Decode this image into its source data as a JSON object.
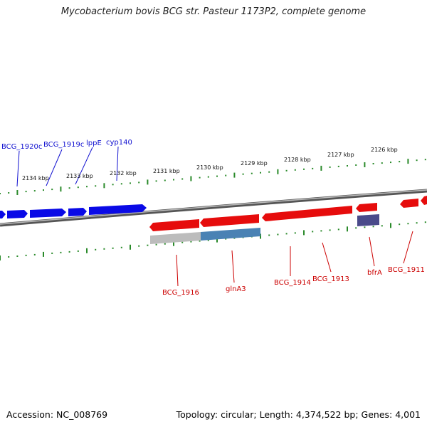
{
  "title": "Mycobacterium bovis BCG str. Pasteur 1173P2, complete genome",
  "footer": {
    "accession": "Accession: NC_008769",
    "summary": "Topology: circular; Length: 4,374,522 bp; Genes: 4,001"
  },
  "colors": {
    "forward_gene": "#0a0ae6",
    "reverse_gene": "#e60c0c",
    "rna_gene": "#4a4a8a",
    "feature_highlight": "#4a82b4",
    "feature_grey": "#bcbcbc",
    "backbone": "#777777",
    "ticks": "#2a8a2a"
  },
  "scale": {
    "tick_labels": [
      "2126 kbp",
      "2127 kbp",
      "2128 kbp",
      "2129 kbp",
      "2130 kbp",
      "2131 kbp",
      "2132 kbp",
      "2133 kbp",
      "2134 kbp"
    ]
  },
  "genes_forward": [
    {
      "label": "BCG_1920c"
    },
    {
      "label": "BCG_1919c"
    },
    {
      "label": "lppE"
    },
    {
      "label": "cyp140"
    }
  ],
  "genes_reverse": [
    {
      "label": "BCG_1916"
    },
    {
      "label": "glnA3"
    },
    {
      "label": "BCG_1914"
    },
    {
      "label": "BCG_1913"
    },
    {
      "label": "bfrA"
    },
    {
      "label": "BCG_1911"
    }
  ]
}
